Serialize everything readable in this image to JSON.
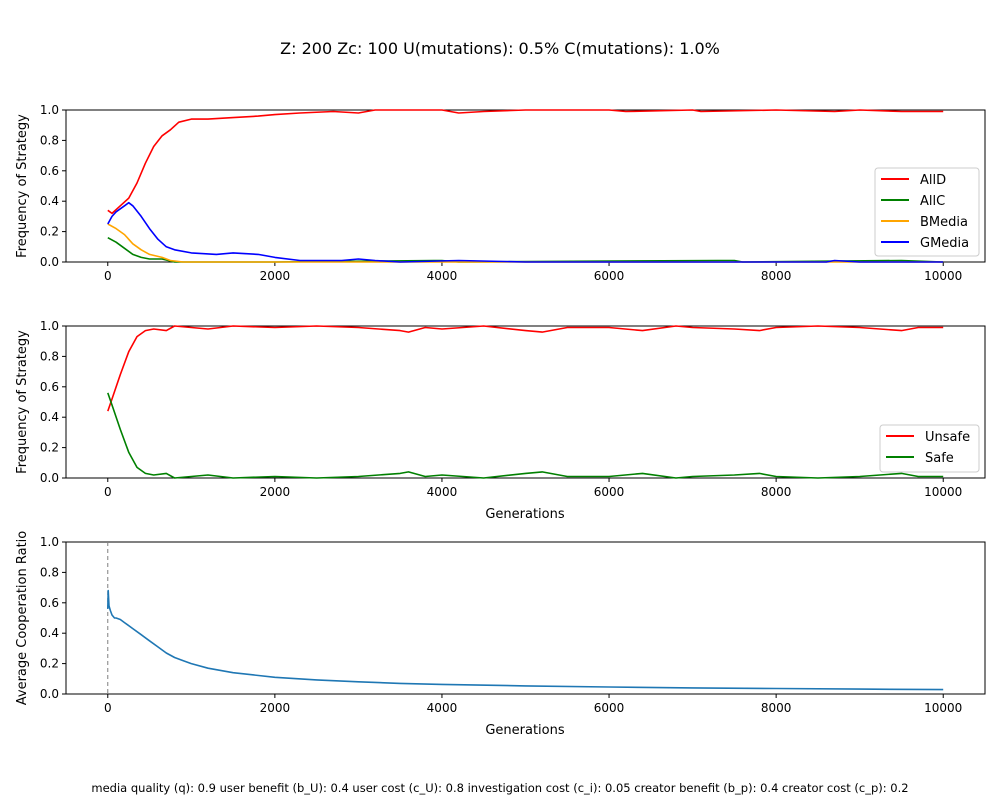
{
  "figure": {
    "suptitle": "Z: 200  Zc: 100  U(mutations): 0.5%  C(mutations): 1.0%",
    "footnote": "media quality (q): 0.9  user benefit (b_U): 0.4  user cost (c_U): 0.8  investigation cost (c_i): 0.05  creator benefit (b_p): 0.4  creator cost (c_p): 0.2"
  },
  "chart_data": [
    {
      "type": "line",
      "title": "",
      "xlabel": "",
      "ylabel": "Frequency of Strategy",
      "xlim": [
        -500,
        10500
      ],
      "ylim": [
        0,
        1
      ],
      "xticks": [
        0,
        2000,
        4000,
        6000,
        8000,
        10000
      ],
      "yticks": [
        0.0,
        0.2,
        0.4,
        0.6,
        0.8,
        1.0
      ],
      "legend_position": "center-right",
      "grid": false,
      "series": [
        {
          "name": "AllD",
          "color": "#ff0000",
          "points": [
            [
              0,
              0.34
            ],
            [
              50,
              0.32
            ],
            [
              150,
              0.37
            ],
            [
              250,
              0.42
            ],
            [
              350,
              0.52
            ],
            [
              450,
              0.65
            ],
            [
              550,
              0.76
            ],
            [
              650,
              0.83
            ],
            [
              750,
              0.87
            ],
            [
              850,
              0.92
            ],
            [
              1000,
              0.94
            ],
            [
              1200,
              0.94
            ],
            [
              1500,
              0.95
            ],
            [
              1800,
              0.96
            ],
            [
              2000,
              0.97
            ],
            [
              2300,
              0.98
            ],
            [
              2700,
              0.99
            ],
            [
              3000,
              0.98
            ],
            [
              3200,
              1.0
            ],
            [
              4000,
              1.0
            ],
            [
              4200,
              0.98
            ],
            [
              4500,
              0.99
            ],
            [
              5000,
              1.0
            ],
            [
              6000,
              1.0
            ],
            [
              6200,
              0.99
            ],
            [
              7000,
              1.0
            ],
            [
              7100,
              0.99
            ],
            [
              8000,
              1.0
            ],
            [
              8700,
              0.99
            ],
            [
              9000,
              1.0
            ],
            [
              9500,
              0.99
            ],
            [
              10000,
              0.99
            ]
          ]
        },
        {
          "name": "AllC",
          "color": "#008000",
          "points": [
            [
              0,
              0.16
            ],
            [
              100,
              0.13
            ],
            [
              200,
              0.09
            ],
            [
              300,
              0.05
            ],
            [
              400,
              0.03
            ],
            [
              500,
              0.02
            ],
            [
              650,
              0.02
            ],
            [
              800,
              0.0
            ],
            [
              2000,
              0.0
            ],
            [
              3900,
              0.01
            ],
            [
              4000,
              0.01
            ],
            [
              4200,
              0.0
            ],
            [
              7300,
              0.01
            ],
            [
              7500,
              0.01
            ],
            [
              7600,
              0.0
            ],
            [
              9500,
              0.01
            ],
            [
              10000,
              0.0
            ]
          ]
        },
        {
          "name": "BMedia",
          "color": "#ffa500",
          "points": [
            [
              0,
              0.25
            ],
            [
              100,
              0.22
            ],
            [
              200,
              0.18
            ],
            [
              300,
              0.12
            ],
            [
              400,
              0.08
            ],
            [
              500,
              0.05
            ],
            [
              650,
              0.03
            ],
            [
              750,
              0.01
            ],
            [
              900,
              0.0
            ],
            [
              10000,
              0.0
            ]
          ]
        },
        {
          "name": "GMedia",
          "color": "#0000ff",
          "points": [
            [
              0,
              0.25
            ],
            [
              50,
              0.3
            ],
            [
              100,
              0.33
            ],
            [
              200,
              0.37
            ],
            [
              250,
              0.39
            ],
            [
              300,
              0.37
            ],
            [
              400,
              0.3
            ],
            [
              500,
              0.22
            ],
            [
              600,
              0.15
            ],
            [
              700,
              0.1
            ],
            [
              800,
              0.08
            ],
            [
              1000,
              0.06
            ],
            [
              1300,
              0.05
            ],
            [
              1500,
              0.06
            ],
            [
              1800,
              0.05
            ],
            [
              2000,
              0.03
            ],
            [
              2300,
              0.01
            ],
            [
              2800,
              0.01
            ],
            [
              3000,
              0.02
            ],
            [
              3200,
              0.01
            ],
            [
              3500,
              0.0
            ],
            [
              4200,
              0.01
            ],
            [
              5000,
              0.0
            ],
            [
              8600,
              0.0
            ],
            [
              8700,
              0.01
            ],
            [
              9000,
              0.0
            ],
            [
              10000,
              0.0
            ]
          ]
        }
      ]
    },
    {
      "type": "line",
      "title": "",
      "xlabel": "Generations",
      "ylabel": "Frequency of Strategy",
      "xlim": [
        -500,
        10500
      ],
      "ylim": [
        0,
        1
      ],
      "xticks": [
        0,
        2000,
        4000,
        6000,
        8000,
        10000
      ],
      "yticks": [
        0.0,
        0.2,
        0.4,
        0.6,
        0.8,
        1.0
      ],
      "legend_position": "lower-right",
      "grid": false,
      "series": [
        {
          "name": "Unsafe",
          "color": "#ff0000",
          "points": [
            [
              0,
              0.44
            ],
            [
              50,
              0.52
            ],
            [
              150,
              0.68
            ],
            [
              250,
              0.83
            ],
            [
              350,
              0.93
            ],
            [
              450,
              0.97
            ],
            [
              550,
              0.98
            ],
            [
              700,
              0.97
            ],
            [
              800,
              1.0
            ],
            [
              1200,
              0.98
            ],
            [
              1500,
              1.0
            ],
            [
              2000,
              0.99
            ],
            [
              2500,
              1.0
            ],
            [
              3000,
              0.99
            ],
            [
              3500,
              0.97
            ],
            [
              3600,
              0.96
            ],
            [
              3800,
              0.99
            ],
            [
              4000,
              0.98
            ],
            [
              4500,
              1.0
            ],
            [
              5000,
              0.97
            ],
            [
              5200,
              0.96
            ],
            [
              5500,
              0.99
            ],
            [
              6000,
              0.99
            ],
            [
              6400,
              0.97
            ],
            [
              6800,
              1.0
            ],
            [
              7000,
              0.99
            ],
            [
              7500,
              0.98
            ],
            [
              7800,
              0.97
            ],
            [
              8000,
              0.99
            ],
            [
              8500,
              1.0
            ],
            [
              9000,
              0.99
            ],
            [
              9500,
              0.97
            ],
            [
              9700,
              0.99
            ],
            [
              10000,
              0.99
            ]
          ]
        },
        {
          "name": "Safe",
          "color": "#008000",
          "points": [
            [
              0,
              0.56
            ],
            [
              50,
              0.48
            ],
            [
              150,
              0.32
            ],
            [
              250,
              0.17
            ],
            [
              350,
              0.07
            ],
            [
              450,
              0.03
            ],
            [
              550,
              0.02
            ],
            [
              700,
              0.03
            ],
            [
              800,
              0.0
            ],
            [
              1200,
              0.02
            ],
            [
              1500,
              0.0
            ],
            [
              2000,
              0.01
            ],
            [
              2500,
              0.0
            ],
            [
              3000,
              0.01
            ],
            [
              3500,
              0.03
            ],
            [
              3600,
              0.04
            ],
            [
              3800,
              0.01
            ],
            [
              4000,
              0.02
            ],
            [
              4500,
              0.0
            ],
            [
              5000,
              0.03
            ],
            [
              5200,
              0.04
            ],
            [
              5500,
              0.01
            ],
            [
              6000,
              0.01
            ],
            [
              6400,
              0.03
            ],
            [
              6800,
              0.0
            ],
            [
              7000,
              0.01
            ],
            [
              7500,
              0.02
            ],
            [
              7800,
              0.03
            ],
            [
              8000,
              0.01
            ],
            [
              8500,
              0.0
            ],
            [
              9000,
              0.01
            ],
            [
              9500,
              0.03
            ],
            [
              9700,
              0.01
            ],
            [
              10000,
              0.01
            ]
          ]
        }
      ]
    },
    {
      "type": "line",
      "title": "",
      "xlabel": "Generations",
      "ylabel": "Average Cooperation Ratio",
      "xlim": [
        -500,
        10500
      ],
      "ylim": [
        0,
        1
      ],
      "xticks": [
        0,
        2000,
        4000,
        6000,
        8000,
        10000
      ],
      "yticks": [
        0.0,
        0.2,
        0.4,
        0.6,
        0.8,
        1.0
      ],
      "vline_x": 0,
      "grid": false,
      "series": [
        {
          "name": "",
          "color": "#1f77b4",
          "points": [
            [
              0,
              0.56
            ],
            [
              5,
              0.68
            ],
            [
              15,
              0.58
            ],
            [
              30,
              0.55
            ],
            [
              50,
              0.52
            ],
            [
              80,
              0.5
            ],
            [
              100,
              0.5
            ],
            [
              150,
              0.49
            ],
            [
              200,
              0.47
            ],
            [
              300,
              0.43
            ],
            [
              400,
              0.39
            ],
            [
              500,
              0.35
            ],
            [
              600,
              0.31
            ],
            [
              700,
              0.27
            ],
            [
              800,
              0.24
            ],
            [
              900,
              0.22
            ],
            [
              1000,
              0.2
            ],
            [
              1200,
              0.17
            ],
            [
              1500,
              0.14
            ],
            [
              2000,
              0.11
            ],
            [
              2500,
              0.093
            ],
            [
              3000,
              0.08
            ],
            [
              3500,
              0.07
            ],
            [
              4000,
              0.063
            ],
            [
              5000,
              0.053
            ],
            [
              6000,
              0.046
            ],
            [
              7000,
              0.04
            ],
            [
              8000,
              0.036
            ],
            [
              9000,
              0.032
            ],
            [
              10000,
              0.029
            ]
          ]
        }
      ]
    }
  ]
}
